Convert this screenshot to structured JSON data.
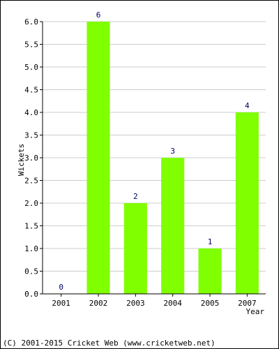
{
  "chart_data": {
    "type": "bar",
    "categories": [
      "2001",
      "2002",
      "2003",
      "2004",
      "2005",
      "2007"
    ],
    "values": [
      0,
      6,
      2,
      3,
      1,
      4
    ],
    "data_labels": [
      "0",
      "6",
      "2",
      "3",
      "1",
      "4"
    ],
    "title": "",
    "xlabel": "Year",
    "ylabel": "Wickets",
    "ylim": [
      0,
      6
    ],
    "yticks": [
      "0.0",
      "0.5",
      "1.0",
      "1.5",
      "2.0",
      "2.5",
      "3.0",
      "3.5",
      "4.0",
      "4.5",
      "5.0",
      "5.5",
      "6.0"
    ],
    "grid": true,
    "legend": "none",
    "bar_color": "#80ff00",
    "grid_color": "#cccccc"
  },
  "footer": {
    "copyright": "(C) 2001-2015 Cricket Web (www.cricketweb.net)"
  }
}
